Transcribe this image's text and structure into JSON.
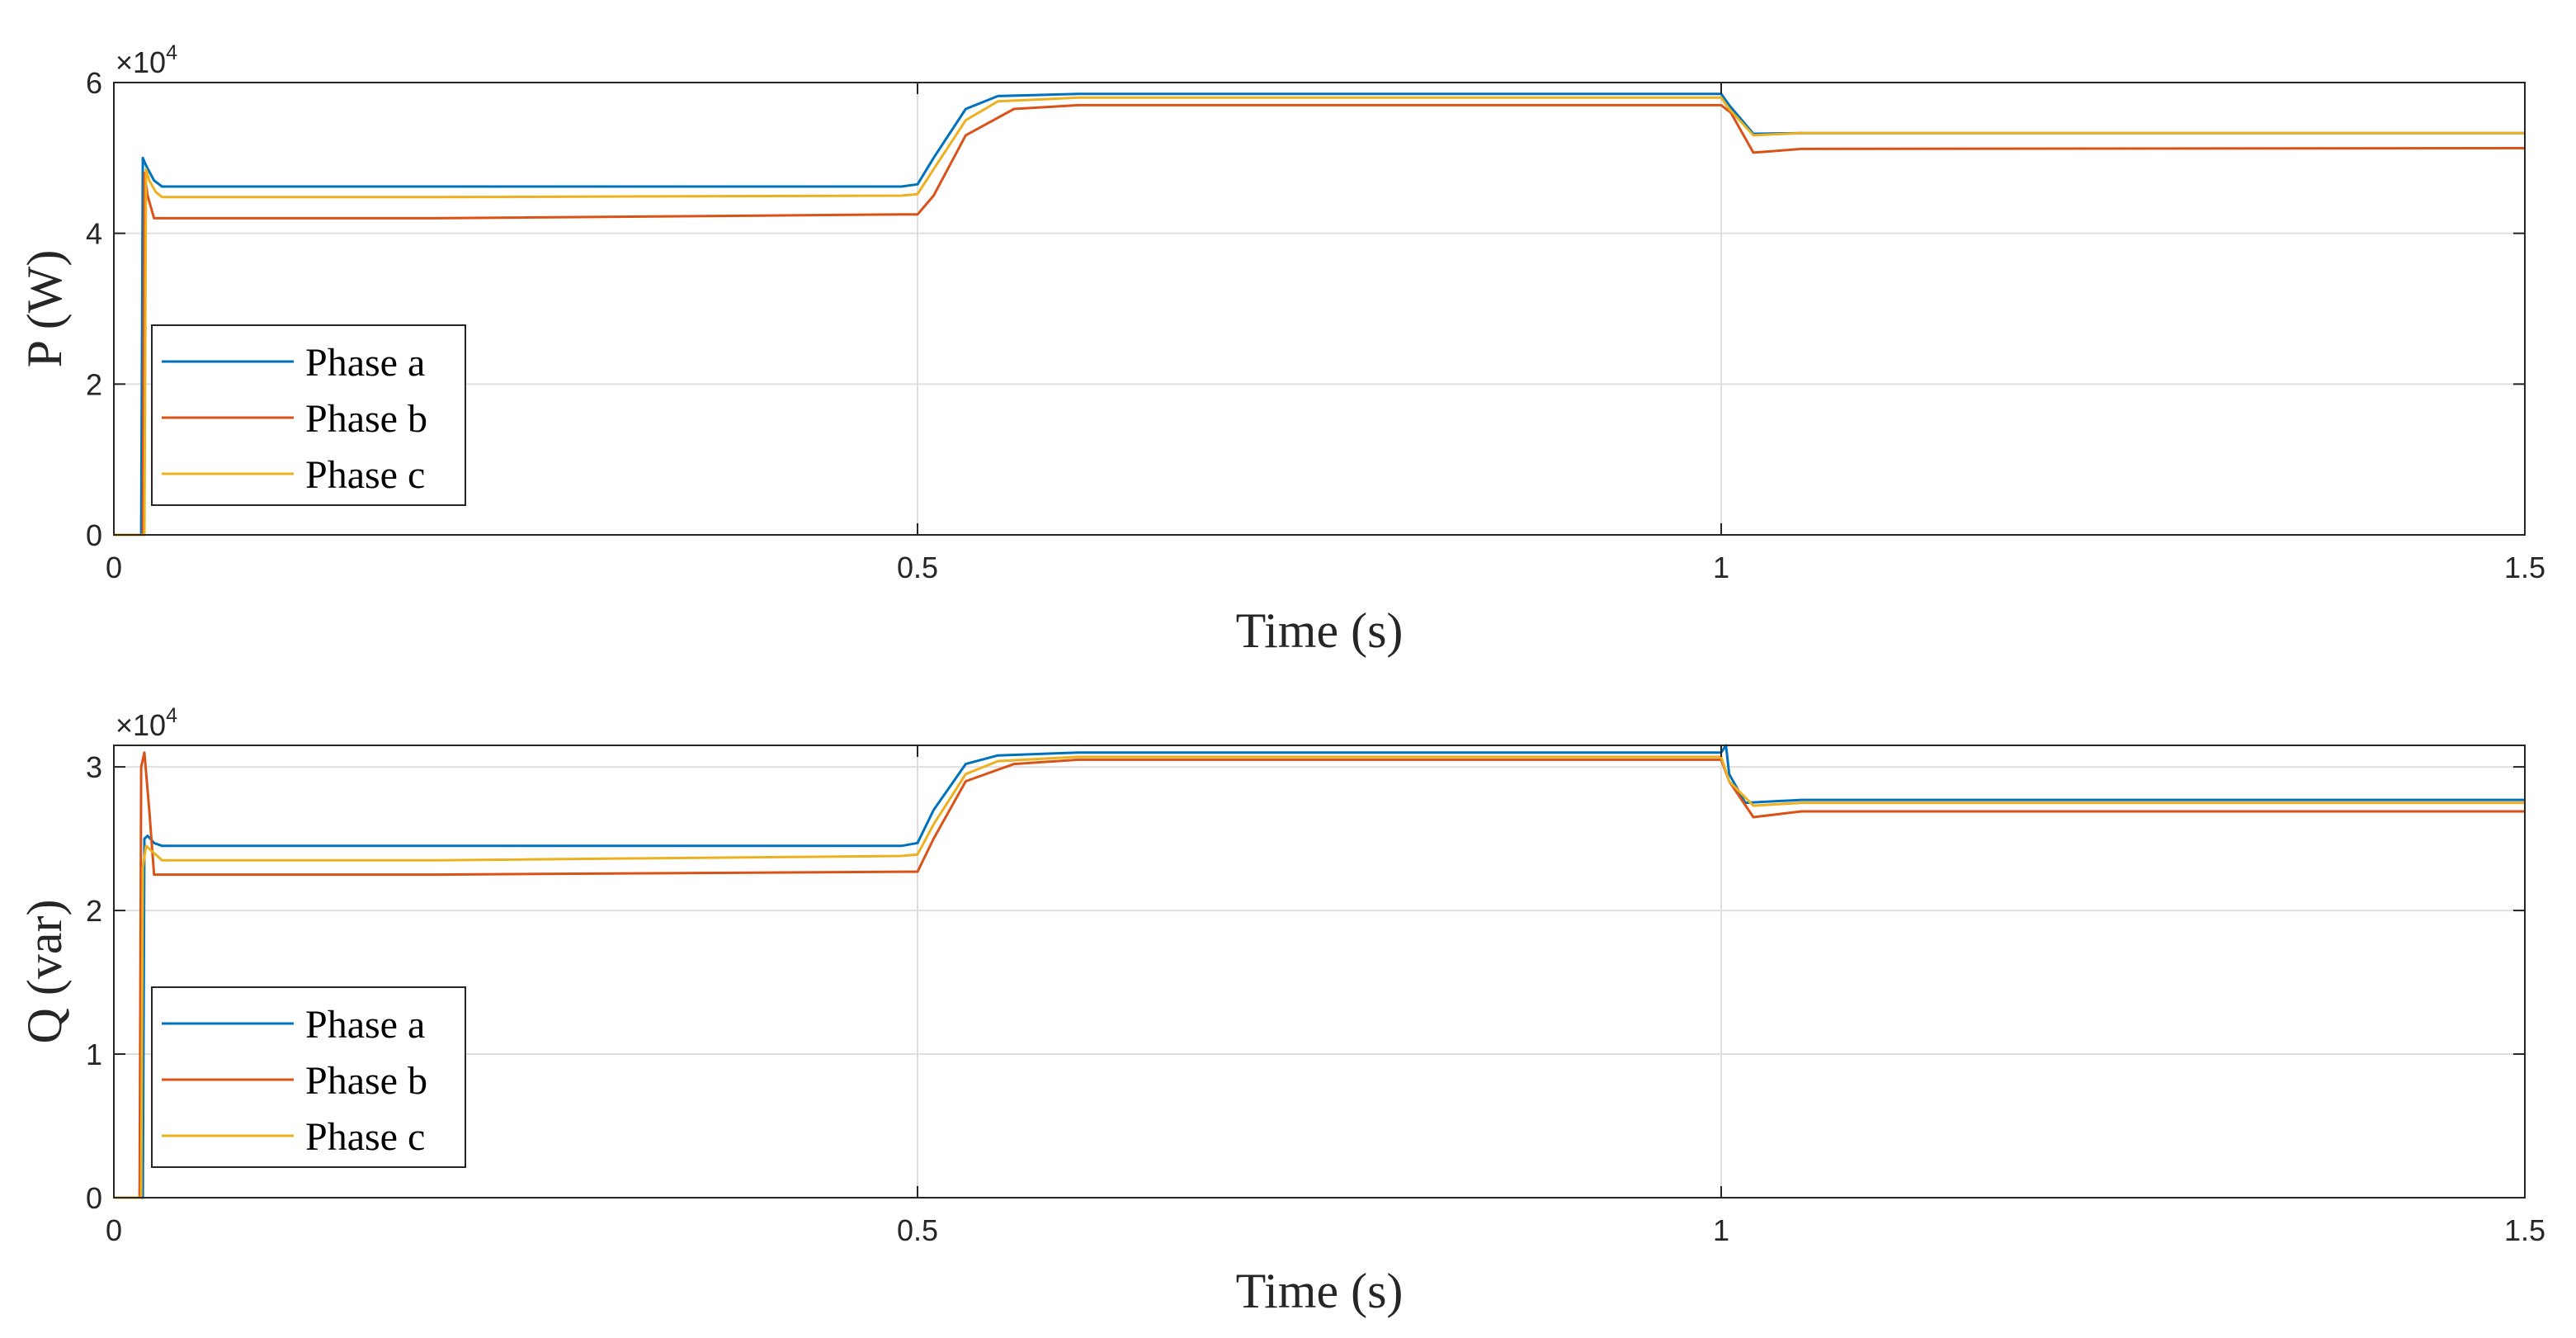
{
  "colors": {
    "phase_a": "#0072BD",
    "phase_b": "#D95319",
    "phase_c": "#EDB120",
    "grid": "#DFDFDF",
    "axis": "#262626"
  },
  "chart_data": [
    {
      "type": "line",
      "title": "",
      "xlabel": "Time (s)",
      "ylabel": "P (W)",
      "xlim": [
        0,
        1.5
      ],
      "ylim": [
        0,
        60000
      ],
      "xticks": [
        0,
        0.5,
        1,
        1.5
      ],
      "xtick_labels": [
        "0",
        "0.5",
        "1",
        "1.5"
      ],
      "yticks": [
        0,
        20000,
        40000,
        60000
      ],
      "ytick_labels": [
        "0",
        "2",
        "4",
        "6"
      ],
      "exponent_base": "×10",
      "exponent_power": "4",
      "grid": true,
      "legend_position": "lower-left",
      "series": [
        {
          "name": "Phase a",
          "color": "#0072BD",
          "x": [
            0,
            0.017,
            0.018,
            0.02,
            0.025,
            0.03,
            0.2,
            0.49,
            0.5,
            0.51,
            0.53,
            0.55,
            0.6,
            1.0,
            1.005,
            1.02,
            1.05,
            1.5
          ],
          "y": [
            0,
            0,
            50000,
            49000,
            47000,
            46200,
            46200,
            46200,
            46500,
            50000,
            56500,
            58200,
            58500,
            58500,
            57000,
            53200,
            53300,
            53300
          ]
        },
        {
          "name": "Phase b",
          "color": "#D95319",
          "x": [
            0,
            0.018,
            0.019,
            0.021,
            0.025,
            0.03,
            0.2,
            0.49,
            0.5,
            0.51,
            0.53,
            0.56,
            0.6,
            1.0,
            1.006,
            1.02,
            1.05,
            1.5
          ],
          "y": [
            0,
            0,
            48000,
            45000,
            42000,
            42000,
            42000,
            42500,
            42500,
            45000,
            53000,
            56500,
            57000,
            57000,
            56000,
            50700,
            51200,
            51300
          ]
        },
        {
          "name": "Phase c",
          "color": "#EDB120",
          "x": [
            0,
            0.019,
            0.02,
            0.022,
            0.026,
            0.03,
            0.2,
            0.49,
            0.5,
            0.51,
            0.53,
            0.55,
            0.6,
            1.0,
            1.005,
            1.02,
            1.05,
            1.5
          ],
          "y": [
            0,
            0,
            48500,
            47000,
            45500,
            44800,
            44800,
            45000,
            45200,
            48500,
            55000,
            57500,
            58000,
            58000,
            56500,
            53000,
            53300,
            53300
          ]
        }
      ]
    },
    {
      "type": "line",
      "title": "",
      "xlabel": "Time (s)",
      "ylabel": "Q (var)",
      "xlim": [
        0,
        1.5
      ],
      "ylim": [
        0,
        31500
      ],
      "xticks": [
        0,
        0.5,
        1,
        1.5
      ],
      "xtick_labels": [
        "0",
        "0.5",
        "1",
        "1.5"
      ],
      "yticks": [
        0,
        10000,
        20000,
        30000
      ],
      "ytick_labels": [
        "0",
        "1",
        "2",
        "3"
      ],
      "exponent_base": "×10",
      "exponent_power": "4",
      "grid": true,
      "legend_position": "lower-left",
      "series": [
        {
          "name": "Phase a",
          "color": "#0072BD",
          "x": [
            0,
            0.018,
            0.019,
            0.021,
            0.025,
            0.03,
            0.2,
            0.49,
            0.5,
            0.51,
            0.53,
            0.55,
            0.6,
            1.0,
            1.003,
            1.005,
            1.015,
            1.05,
            1.5
          ],
          "y": [
            0,
            0,
            25000,
            25200,
            24700,
            24500,
            24500,
            24500,
            24700,
            27000,
            30200,
            30800,
            31000,
            31000,
            31500,
            29500,
            27500,
            27700,
            27700
          ]
        },
        {
          "name": "Phase b",
          "color": "#D95319",
          "x": [
            0,
            0.016,
            0.017,
            0.019,
            0.022,
            0.025,
            0.03,
            0.2,
            0.49,
            0.5,
            0.51,
            0.53,
            0.56,
            0.6,
            1.0,
            1.005,
            1.02,
            1.05,
            1.5
          ],
          "y": [
            0,
            0,
            30000,
            31000,
            27000,
            22500,
            22500,
            22500,
            22700,
            22700,
            25000,
            29000,
            30200,
            30500,
            30500,
            29000,
            26500,
            26900,
            26900
          ]
        },
        {
          "name": "Phase c",
          "color": "#EDB120",
          "x": [
            0,
            0.017,
            0.018,
            0.02,
            0.025,
            0.03,
            0.2,
            0.49,
            0.5,
            0.51,
            0.53,
            0.55,
            0.6,
            1.0,
            1.005,
            1.02,
            1.05,
            1.5
          ],
          "y": [
            0,
            0,
            23000,
            24500,
            24000,
            23500,
            23500,
            23800,
            23900,
            26000,
            29500,
            30400,
            30700,
            30700,
            29000,
            27300,
            27500,
            27500
          ]
        }
      ]
    }
  ]
}
